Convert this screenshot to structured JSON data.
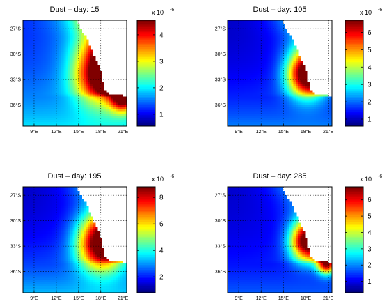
{
  "chart_data": [
    {
      "type": "heatmap",
      "title": "Dust – day: 15",
      "xticklabels": [
        "9°E",
        "12°E",
        "15°E",
        "18°E",
        "21°E"
      ],
      "yticklabels": [
        "27°S",
        "30°S",
        "33°S",
        "36°S"
      ],
      "xlim": [
        7.5,
        21.5
      ],
      "ylim": [
        -38.5,
        -26
      ],
      "grid": true,
      "colormap": "jet",
      "colorbar": {
        "multiplier": "x 10",
        "exponent": "-6",
        "ticklabels": [
          "1",
          "2",
          "3",
          "4"
        ],
        "ticks": [
          1,
          2,
          3,
          4
        ],
        "clim": [
          0.55,
          4.55
        ]
      },
      "field": {
        "base": 1.05,
        "far": 1.5,
        "coast": 1.25,
        "hotspots": [
          {
            "lon": 18.3,
            "lat": -32.2,
            "value": 4.3,
            "spread": 2.6
          },
          {
            "lon": 21.0,
            "lat": -35.0,
            "value": 4.1,
            "spread": 1.2
          }
        ]
      }
    },
    {
      "type": "heatmap",
      "title": "Dust – day: 105",
      "xticklabels": [
        "9°E",
        "12°E",
        "15°E",
        "18°E",
        "21°E"
      ],
      "yticklabels": [
        "27°S",
        "30°S",
        "33°S",
        "36°S"
      ],
      "xlim": [
        7.5,
        21.5
      ],
      "ylim": [
        -38.5,
        -26
      ],
      "grid": true,
      "colormap": "jet",
      "colorbar": {
        "multiplier": "x 10",
        "exponent": "-6",
        "ticklabels": [
          "1",
          "2",
          "3",
          "4",
          "5",
          "6"
        ],
        "ticks": [
          1,
          2,
          3,
          4,
          5,
          6
        ],
        "clim": [
          0.6,
          6.7
        ]
      },
      "field": {
        "base": 0.8,
        "far": 2.2,
        "coast": 1.1,
        "hotspots": [
          {
            "lon": 18.2,
            "lat": -32.3,
            "value": 6.5,
            "spread": 1.9
          }
        ]
      }
    },
    {
      "type": "heatmap",
      "title": "Dust – day: 195",
      "xticklabels": [
        "9°E",
        "12°E",
        "15°E",
        "18°E",
        "21°E"
      ],
      "yticklabels": [
        "27°S",
        "30°S",
        "33°S",
        "36°S"
      ],
      "xlim": [
        7.5,
        21.5
      ],
      "ylim": [
        -38.5,
        -26
      ],
      "grid": true,
      "colormap": "jet",
      "colorbar": {
        "multiplier": "x 10",
        "exponent": "-6",
        "ticklabels": [
          "2",
          "4",
          "6",
          "8"
        ],
        "ticks": [
          2,
          4,
          6,
          8
        ],
        "clim": [
          0.8,
          8.8
        ]
      },
      "field": {
        "base": 1.0,
        "far": 3.8,
        "coast": 1.3,
        "hotspots": [
          {
            "lon": 18.2,
            "lat": -32.6,
            "value": 8.4,
            "spread": 2.3
          }
        ]
      }
    },
    {
      "type": "heatmap",
      "title": "Dust – day: 285",
      "xticklabels": [
        "9°E",
        "12°E",
        "15°E",
        "18°E",
        "21°E"
      ],
      "yticklabels": [
        "27°S",
        "30°S",
        "33°S",
        "36°S"
      ],
      "xlim": [
        7.5,
        21.5
      ],
      "ylim": [
        -38.5,
        -26
      ],
      "grid": true,
      "colormap": "jet",
      "colorbar": {
        "multiplier": "x 10",
        "exponent": "-6",
        "ticklabels": [
          "1",
          "2",
          "3",
          "4",
          "5",
          "6"
        ],
        "ticks": [
          1,
          2,
          3,
          4,
          5,
          6
        ],
        "clim": [
          0.3,
          6.8
        ]
      },
      "field": {
        "base": 0.6,
        "far": 1.8,
        "coast": 1.0,
        "hotspots": [
          {
            "lon": 18.2,
            "lat": -32.4,
            "value": 6.5,
            "spread": 1.6
          },
          {
            "lon": 20.8,
            "lat": -35.0,
            "value": 6.1,
            "spread": 0.9
          }
        ]
      }
    }
  ]
}
